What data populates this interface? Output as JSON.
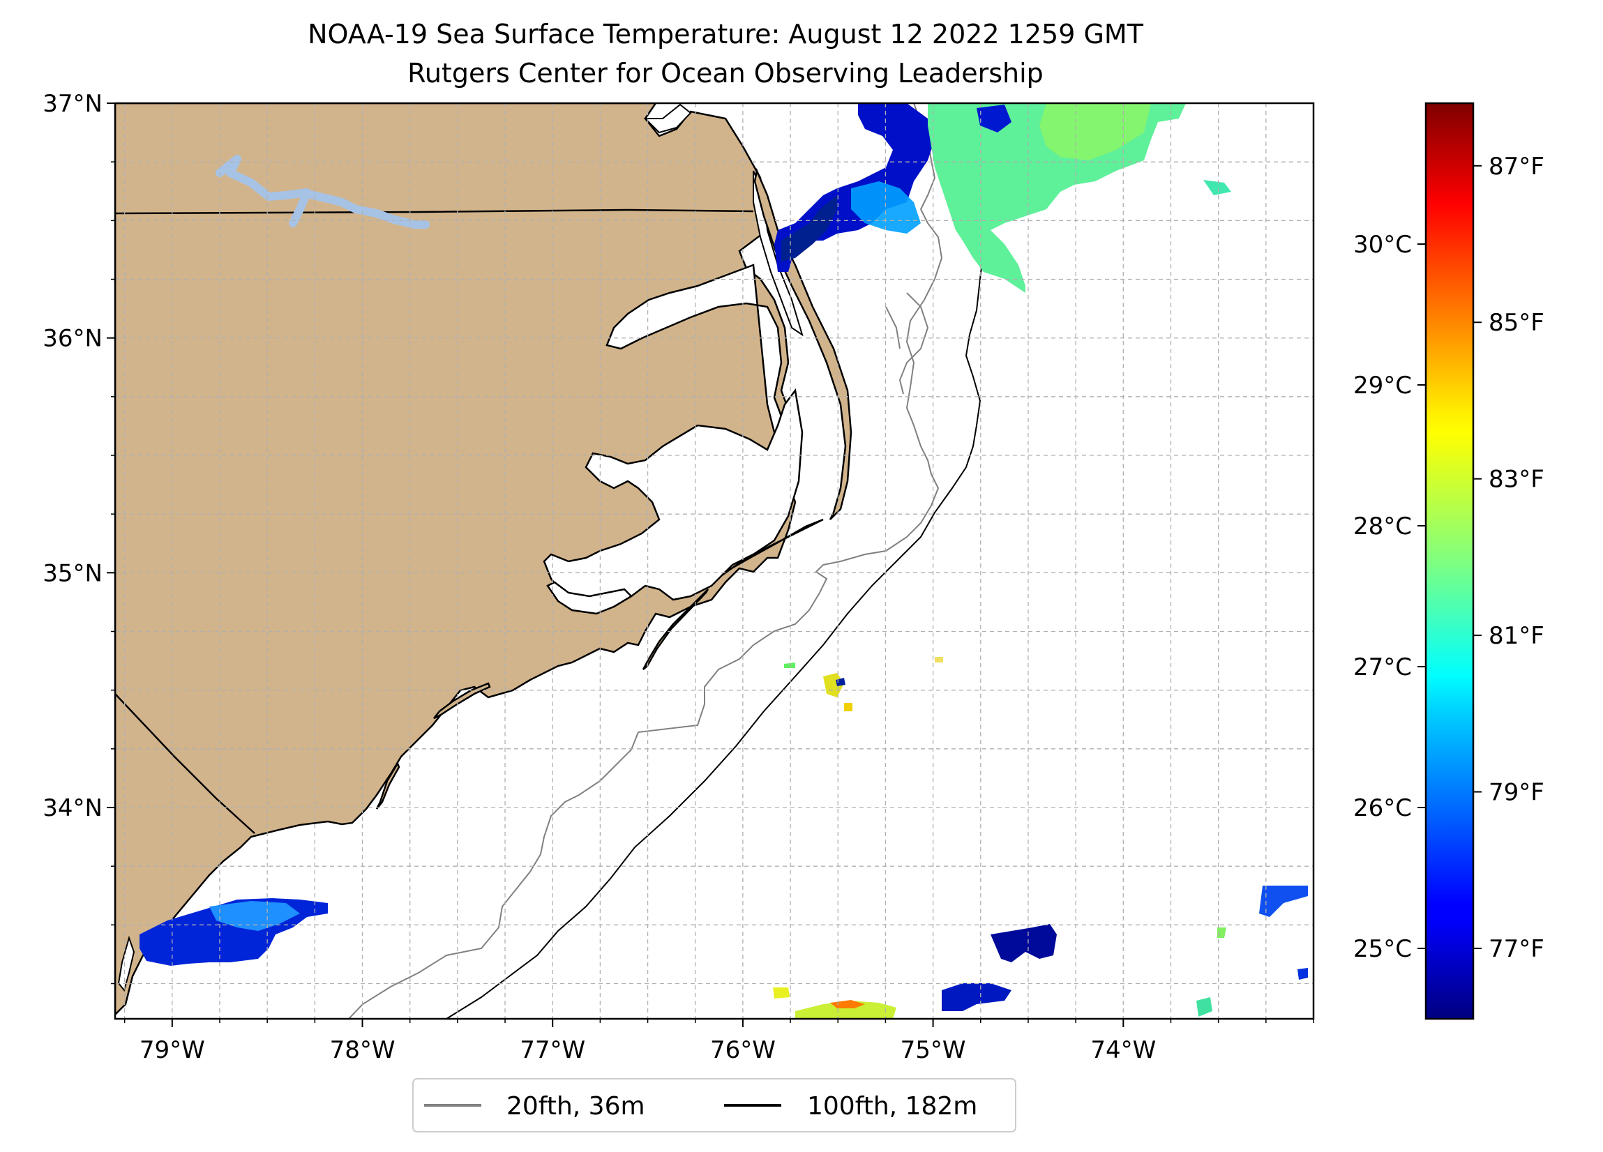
{
  "title": {
    "line1": "NOAA-19 Sea Surface Temperature: August 12 2022 1259 GMT",
    "line2": "Rutgers Center for Ocean Observing Leadership"
  },
  "map": {
    "lon_range": [
      -79.3,
      -73.0
    ],
    "lat_range": [
      33.1,
      37.0
    ],
    "lon_ticks": [
      {
        "value": -79,
        "label": "79°W"
      },
      {
        "value": -78,
        "label": "78°W"
      },
      {
        "value": -77,
        "label": "77°W"
      },
      {
        "value": -76,
        "label": "76°W"
      },
      {
        "value": -75,
        "label": "75°W"
      },
      {
        "value": -74,
        "label": "74°W"
      }
    ],
    "lat_ticks": [
      {
        "value": 34,
        "label": "34°N"
      },
      {
        "value": 35,
        "label": "35°N"
      },
      {
        "value": 36,
        "label": "36°N"
      },
      {
        "value": 37,
        "label": "37°N"
      }
    ],
    "gridlines": true,
    "land_color": "#d2b48c",
    "lake_color": "#a6c3e6"
  },
  "colorbar": {
    "colormap": "jet",
    "celsius_range": [
      24.5,
      31.0
    ],
    "celsius_ticks": [
      {
        "value": 25,
        "label": "25°C"
      },
      {
        "value": 26,
        "label": "26°C"
      },
      {
        "value": 27,
        "label": "27°C"
      },
      {
        "value": 28,
        "label": "28°C"
      },
      {
        "value": 29,
        "label": "29°C"
      },
      {
        "value": 30,
        "label": "30°C"
      }
    ],
    "fahrenheit_ticks": [
      {
        "value": 77,
        "label": "77°F"
      },
      {
        "value": 79,
        "label": "79°F"
      },
      {
        "value": 81,
        "label": "81°F"
      },
      {
        "value": 83,
        "label": "83°F"
      },
      {
        "value": 85,
        "label": "85°F"
      },
      {
        "value": 87,
        "label": "87°F"
      }
    ]
  },
  "legend": {
    "placement": "bottom-center",
    "items": [
      {
        "label": "20fth, 36m",
        "color": "#808080"
      },
      {
        "label": "100fth, 182m",
        "color": "#000000"
      }
    ]
  }
}
